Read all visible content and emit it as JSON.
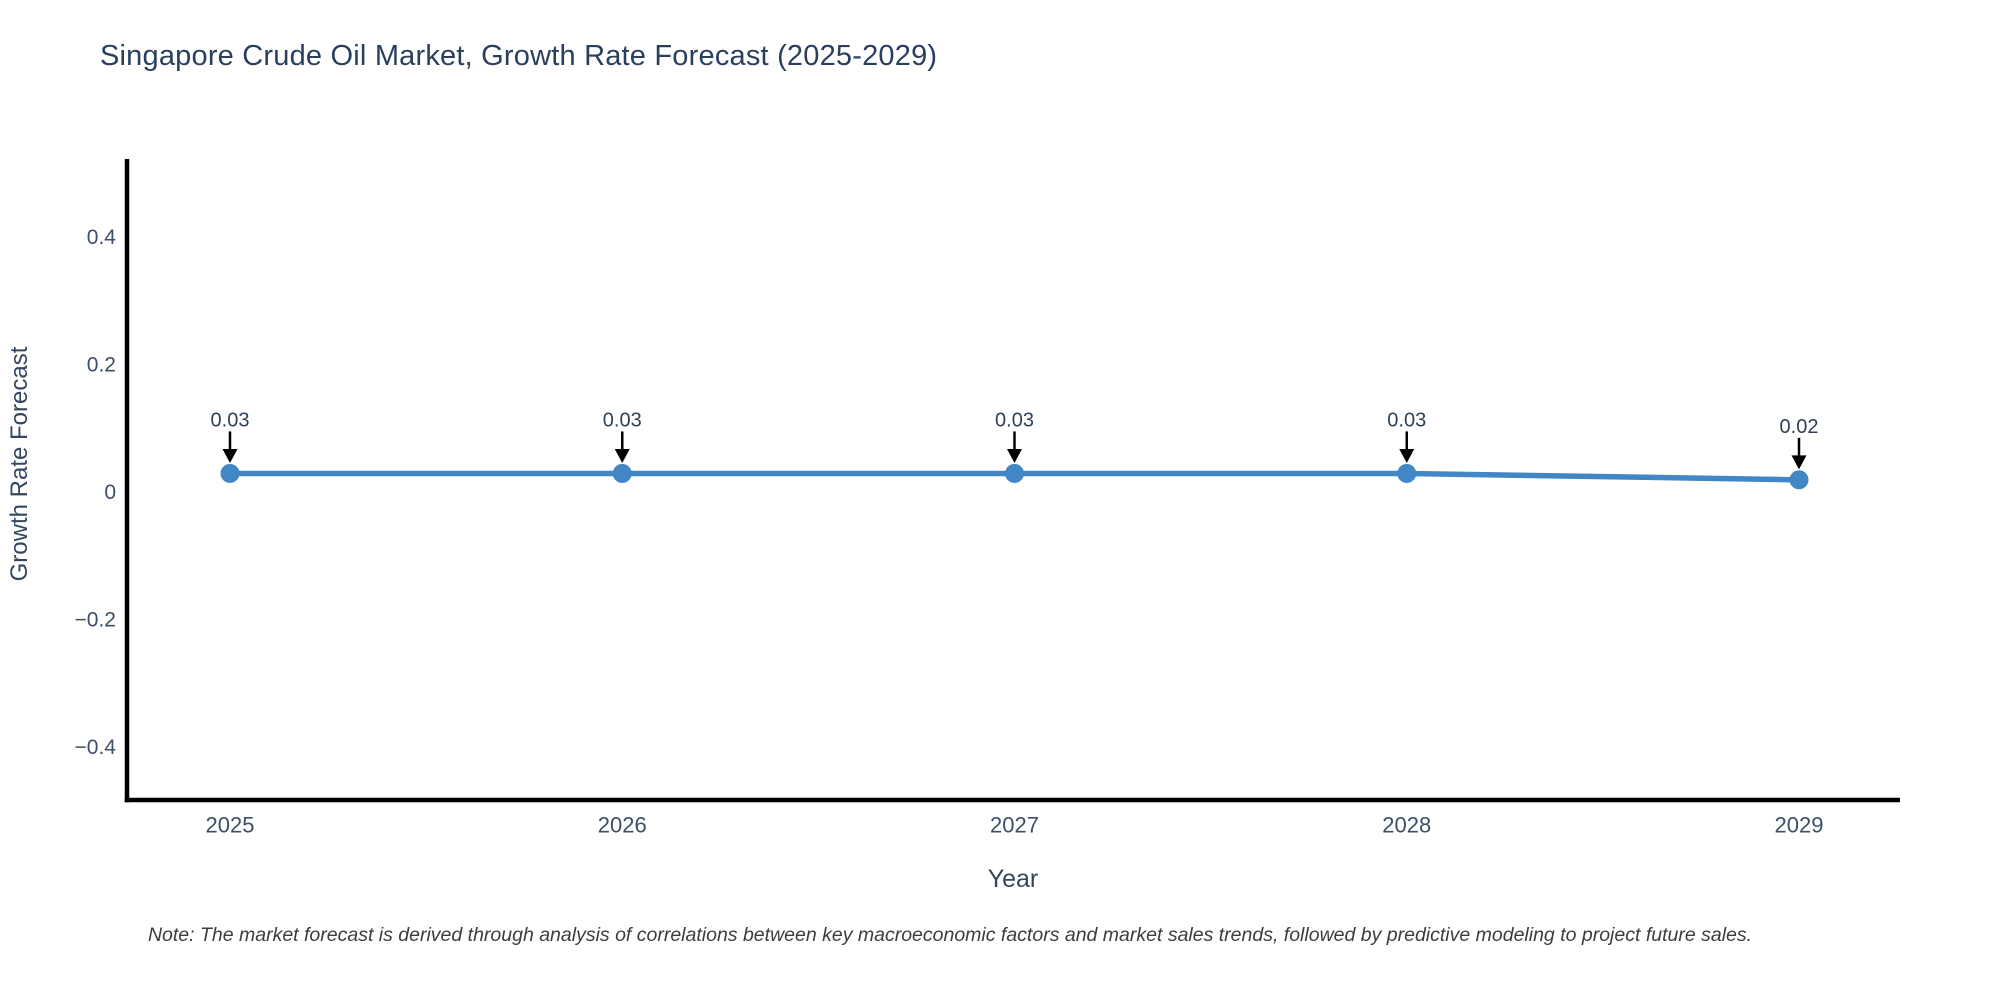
{
  "note": "Note: The market forecast is derived through analysis of correlations between key macroeconomic factors and market sales trends, followed by predictive modeling to project future sales.",
  "chart_data": {
    "type": "line",
    "title": "Singapore Crude Oil Market, Growth Rate Forecast (2025-2029)",
    "xlabel": "Year",
    "ylabel": "Growth Rate Forecast",
    "x": [
      "2025",
      "2026",
      "2027",
      "2028",
      "2029"
    ],
    "series": [
      {
        "name": "Growth Rate Forecast",
        "values": [
          0.03,
          0.03,
          0.03,
          0.03,
          0.02
        ]
      }
    ],
    "data_labels": [
      "0.03",
      "0.03",
      "0.03",
      "0.03",
      "0.02"
    ],
    "ytick_values": [
      0.4,
      0.2,
      0,
      -0.2,
      -0.4
    ],
    "ytick_labels": [
      "0.4",
      "0.2",
      "0",
      "−0.2",
      "−0.4"
    ],
    "ylim": [
      -0.482,
      0.523
    ],
    "grid": false,
    "legend_position": "none",
    "annotation_style": "value-above-with-down-arrow",
    "colors": {
      "line": "#4186c5",
      "marker": "#4186c5",
      "axis": "#000000",
      "arrow": "#000000",
      "title_text": "#2a3f5f",
      "tick_text": "#3d4f68",
      "annotation_text": "#2f4156",
      "note_text": "#3d3d3d",
      "background": "#ffffff"
    }
  }
}
